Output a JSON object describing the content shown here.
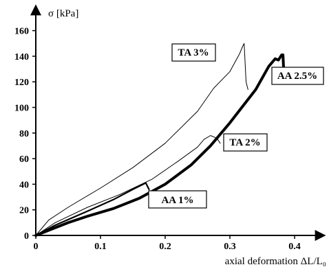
{
  "chart_data": {
    "type": "line",
    "title": "",
    "xlabel": "axial deformation ΔL/L₀",
    "ylabel": "σ [kPa]",
    "xlim": [
      0,
      0.45
    ],
    "ylim": [
      0,
      165
    ],
    "x_ticks": [
      "0",
      "0.1",
      "0.2",
      "0.3",
      "0.4"
    ],
    "x_tick_values": [
      0,
      0.1,
      0.2,
      0.3,
      0.4
    ],
    "y_ticks": [
      "0",
      "20",
      "40",
      "60",
      "80",
      "100",
      "120",
      "140",
      "160"
    ],
    "y_tick_values": [
      0,
      20,
      40,
      60,
      80,
      100,
      120,
      140,
      160
    ],
    "grid": false,
    "series": [
      {
        "name": "TA 3%",
        "color": "#000000",
        "weight": "thin",
        "x": [
          0,
          0.02,
          0.05,
          0.1,
          0.15,
          0.2,
          0.25,
          0.275,
          0.3,
          0.315,
          0.32,
          0.322,
          0.325,
          0.328
        ],
        "y": [
          0,
          12,
          22,
          37,
          53,
          72,
          97,
          115,
          128,
          142,
          148,
          150,
          120,
          114
        ]
      },
      {
        "name": "TA 2%",
        "color": "#000000",
        "weight": "thin",
        "x": [
          0,
          0.03,
          0.08,
          0.13,
          0.18,
          0.22,
          0.25,
          0.26,
          0.27,
          0.28,
          0.285
        ],
        "y": [
          0,
          10,
          22,
          32,
          44,
          58,
          69,
          75,
          78,
          76,
          72
        ]
      },
      {
        "name": "AA 1%",
        "color": "#000000",
        "weight": "medium",
        "x": [
          0,
          0.03,
          0.08,
          0.12,
          0.15,
          0.17,
          0.175
        ],
        "y": [
          0,
          8,
          19,
          28,
          36,
          41,
          36
        ]
      },
      {
        "name": "AA 2.5%",
        "color": "#000000",
        "weight": "thick",
        "x": [
          0,
          0.02,
          0.05,
          0.08,
          0.12,
          0.16,
          0.2,
          0.24,
          0.27,
          0.3,
          0.32,
          0.34,
          0.35,
          0.36,
          0.37,
          0.375,
          0.38,
          0.382,
          0.384
        ],
        "y": [
          0,
          4,
          10,
          15,
          21,
          29,
          40,
          55,
          70,
          88,
          101,
          114,
          123,
          132,
          138,
          137,
          141,
          141,
          120
        ]
      }
    ],
    "annotations": [
      "TA 3%",
      "AA 2.5%",
      "TA 2%",
      "AA 1%"
    ]
  }
}
